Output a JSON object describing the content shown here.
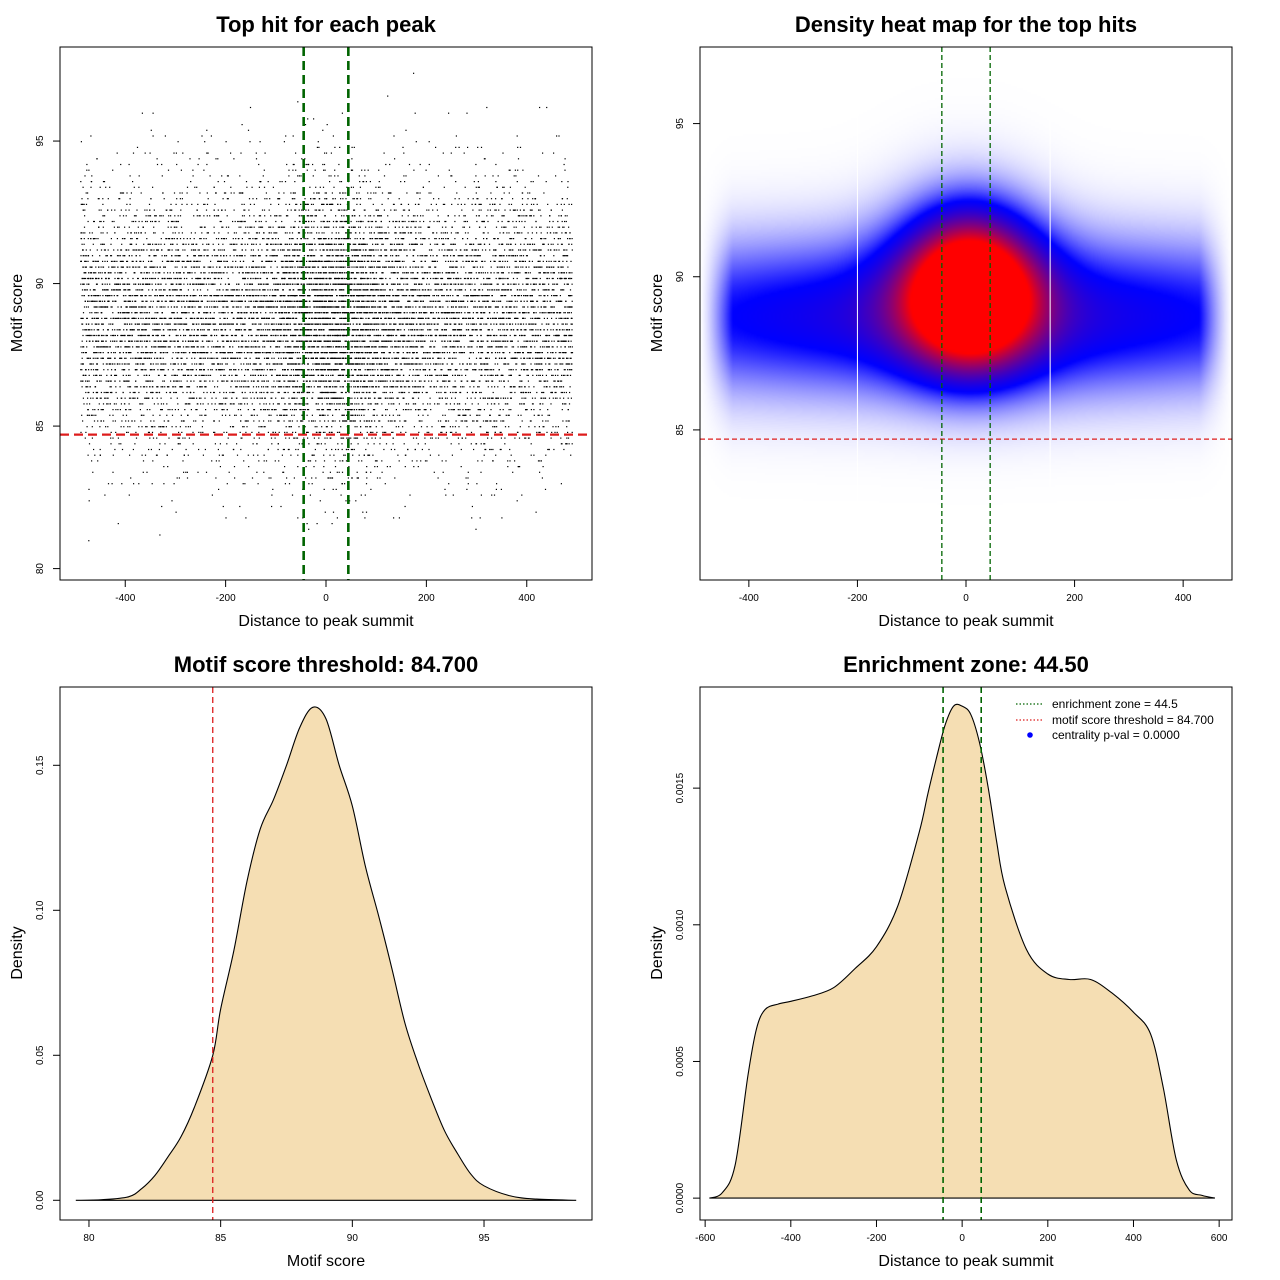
{
  "colors": {
    "threshold_red": "#dd1c1c",
    "zone_green": "#006400",
    "fill_wheat": "#f5deb3",
    "points": "#000000",
    "heat_low": "#ffffff",
    "heat_mid": "#0000ff",
    "heat_high": "#ff0000",
    "legend_dot": "#0000ff"
  },
  "chart_data": [
    {
      "id": "scatter",
      "type": "scatter",
      "title": "Top hit for each peak",
      "xlabel": "Distance to peak summit",
      "ylabel": "Motif score",
      "xlim": [
        -530,
        530
      ],
      "ylim": [
        79.6,
        98.3
      ],
      "xticks": [
        -400,
        -200,
        0,
        200,
        400
      ],
      "yticks": [
        80,
        85,
        90,
        95
      ],
      "point_count": 12000,
      "x_range": [
        -490,
        490
      ],
      "score_mean": 88.8,
      "score_sd": 2.3,
      "score_range": [
        80.8,
        97.6
      ],
      "center_enrichment": {
        "x_center": 10,
        "x_sd": 75,
        "fraction": 0.18
      },
      "threshold": 84.7,
      "zone": [
        -44.5,
        44.5
      ]
    },
    {
      "id": "heatmap",
      "type": "heatmap",
      "title": "Density heat map for the top hits",
      "xlabel": "Distance to peak summit",
      "ylabel": "Motif score",
      "xlim": [
        -490,
        490
      ],
      "ylim": [
        80.1,
        97.5
      ],
      "xticks": [
        -400,
        -200,
        0,
        200,
        400
      ],
      "yticks": [
        85,
        90,
        95
      ],
      "threshold": 84.7,
      "zone": [
        -44.5,
        44.5
      ],
      "white_lines_x": [
        -200,
        155
      ],
      "components": [
        {
          "x_center": 0,
          "y_center": 88.7,
          "sx": 620,
          "sy": 1.9,
          "weight": 0.7
        },
        {
          "x_center": 10,
          "y_center": 89.4,
          "sx": 85,
          "sy": 1.7,
          "weight": 1.25
        },
        {
          "x_center": 0,
          "y_center": 90.5,
          "sx": 95,
          "sy": 2.0,
          "weight": 0.35
        }
      ]
    },
    {
      "id": "score-density",
      "type": "area",
      "title": "Motif score threshold: 84.700",
      "xlabel": "Motif score",
      "ylabel": "Density",
      "xlim": [
        78.9,
        99.1
      ],
      "ylim": [
        -0.0068,
        0.177
      ],
      "xticks": [
        80,
        85,
        90,
        95
      ],
      "yticks": [
        0.0,
        0.05,
        0.1,
        0.15
      ],
      "ytick_labels": [
        "0.00",
        "0.05",
        "0.10",
        "0.15"
      ],
      "threshold": 84.7,
      "x": [
        79.5,
        80.5,
        81.5,
        82.0,
        82.5,
        83.0,
        83.5,
        84.0,
        84.7,
        85.0,
        85.5,
        86.0,
        86.5,
        87.0,
        87.5,
        88.0,
        88.5,
        89.0,
        89.5,
        90.0,
        90.5,
        91.0,
        91.5,
        92.0,
        92.5,
        93.0,
        93.5,
        94.0,
        94.5,
        95.0,
        96.0,
        97.0,
        98.5
      ],
      "y": [
        0.0,
        0.0002,
        0.0012,
        0.004,
        0.0085,
        0.015,
        0.022,
        0.032,
        0.05,
        0.066,
        0.086,
        0.11,
        0.128,
        0.138,
        0.15,
        0.163,
        0.17,
        0.166,
        0.15,
        0.136,
        0.115,
        0.098,
        0.08,
        0.061,
        0.047,
        0.035,
        0.024,
        0.016,
        0.009,
        0.005,
        0.0015,
        0.0004,
        0.0
      ]
    },
    {
      "id": "distance-density",
      "type": "area",
      "title": "Enrichment zone: 44.50",
      "xlabel": "Distance to peak summit",
      "ylabel": "Density",
      "xlim": [
        -612,
        630
      ],
      "ylim": [
        -8e-05,
        0.00187
      ],
      "xticks": [
        -600,
        -400,
        -200,
        0,
        200,
        400,
        600
      ],
      "yticks": [
        0.0,
        0.0005,
        0.001,
        0.0015
      ],
      "ytick_labels": [
        "0.0000",
        "0.0005",
        "0.0010",
        "0.0015"
      ],
      "zone": [
        -44.5,
        44.5
      ],
      "x": [
        -590,
        -560,
        -530,
        -500,
        -480,
        -460,
        -430,
        -400,
        -350,
        -300,
        -250,
        -200,
        -150,
        -100,
        -80,
        -60,
        -40,
        -20,
        0,
        20,
        40,
        60,
        80,
        100,
        150,
        200,
        250,
        300,
        350,
        400,
        440,
        470,
        500,
        530,
        560,
        590
      ],
      "y": [
        0.0,
        2e-05,
        0.00012,
        0.00045,
        0.00062,
        0.00069,
        0.00071,
        0.00072,
        0.00074,
        0.00077,
        0.00084,
        0.00092,
        0.00107,
        0.00134,
        0.00148,
        0.00161,
        0.00173,
        0.0018,
        0.0018,
        0.00177,
        0.00167,
        0.00151,
        0.00131,
        0.00114,
        0.00091,
        0.00082,
        0.0008,
        0.0008,
        0.00075,
        0.00068,
        0.0006,
        0.0004,
        0.00014,
        3e-05,
        1e-05,
        0.0
      ],
      "legend": [
        {
          "label": "enrichment zone = 44.5",
          "style": "dotted-line",
          "color": "#006400"
        },
        {
          "label": "motif score threshold = 84.700",
          "style": "dotted-line",
          "color": "#dd1c1c"
        },
        {
          "label": "centrality p-val = 0.0000",
          "style": "dot",
          "color": "#0000ff"
        }
      ],
      "legend_position": "top-right"
    }
  ]
}
